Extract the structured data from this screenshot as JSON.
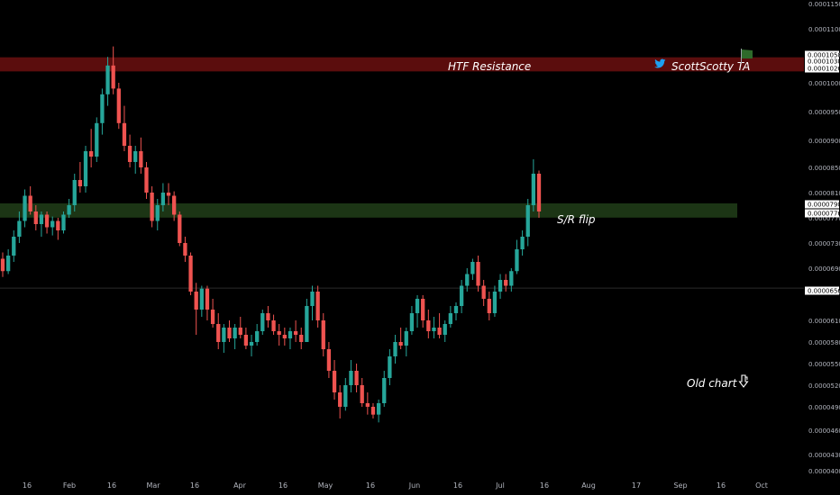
{
  "chart_data": {
    "type": "candlestick",
    "y_axis_ticks": [
      "0.0000400",
      "0.0000430",
      "0.0000460",
      "0.0000490",
      "0.0000520",
      "0.0000550",
      "0.0000580",
      "0.0000610",
      "0.0000650",
      "0.0000690",
      "0.0000730",
      "0.0000770",
      "0.0000810",
      "0.0000850",
      "0.0000900",
      "0.0000950",
      "0.0001000",
      "0.0001050",
      "0.0001100",
      "0.0001150"
    ],
    "x_axis_ticks": [
      "16",
      "Feb",
      "16",
      "Mar",
      "16",
      "Apr",
      "16",
      "May",
      "16",
      "Jun",
      "16",
      "Jul",
      "16",
      "Aug",
      "17",
      "Sep",
      "16",
      "Oct"
    ],
    "price_tags": [
      {
        "label": "0.0001058",
        "value": 0.0001058
      },
      {
        "label": "0.0001038",
        "value": 0.0001038
      },
      {
        "label": "0.0001026",
        "value": 0.0001026
      },
      {
        "label": "0.0000790",
        "value": 7.9e-05
      },
      {
        "label": "0.0000776",
        "value": 7.76e-05
      },
      {
        "label": "0.0000656",
        "value": 6.56e-05
      }
    ],
    "zones": [
      {
        "label": "HTF Resistance",
        "low": 0.0001026,
        "high": 0.0001038,
        "color": "#6b0f0f"
      },
      {
        "label": "S/R flip",
        "low": 7.76e-05,
        "high": 7.9e-05,
        "color": "#1f3b17"
      }
    ],
    "candles": [
      {
        "o": 7.05e-05,
        "h": 7.15e-05,
        "l": 6.75e-05,
        "c": 6.85e-05
      },
      {
        "o": 6.85e-05,
        "h": 7.2e-05,
        "l": 6.8e-05,
        "c": 7.1e-05
      },
      {
        "o": 7.1e-05,
        "h": 7.5e-05,
        "l": 7e-05,
        "c": 7.4e-05
      },
      {
        "o": 7.4e-05,
        "h": 7.8e-05,
        "l": 7.3e-05,
        "c": 7.65e-05
      },
      {
        "o": 7.65e-05,
        "h": 8.15e-05,
        "l": 7.55e-05,
        "c": 8.05e-05
      },
      {
        "o": 8.05e-05,
        "h": 8.2e-05,
        "l": 7.75e-05,
        "c": 7.8e-05
      },
      {
        "o": 7.8e-05,
        "h": 7.9e-05,
        "l": 7.5e-05,
        "c": 7.6e-05
      },
      {
        "o": 7.6e-05,
        "h": 7.8e-05,
        "l": 7.4e-05,
        "c": 7.75e-05
      },
      {
        "o": 7.75e-05,
        "h": 7.8e-05,
        "l": 7.45e-05,
        "c": 7.55e-05
      },
      {
        "o": 7.55e-05,
        "h": 7.72e-05,
        "l": 7.42e-05,
        "c": 7.65e-05
      },
      {
        "o": 7.65e-05,
        "h": 7.7e-05,
        "l": 7.35e-05,
        "c": 7.5e-05
      },
      {
        "o": 7.5e-05,
        "h": 7.8e-05,
        "l": 7.45e-05,
        "c": 7.75e-05
      },
      {
        "o": 7.75e-05,
        "h": 8e-05,
        "l": 7.7e-05,
        "c": 7.9e-05
      },
      {
        "o": 7.9e-05,
        "h": 8.4e-05,
        "l": 7.8e-05,
        "c": 8.3e-05
      },
      {
        "o": 8.3e-05,
        "h": 8.6e-05,
        "l": 8.1e-05,
        "c": 8.2e-05
      },
      {
        "o": 8.2e-05,
        "h": 8.9e-05,
        "l": 8.1e-05,
        "c": 8.8e-05
      },
      {
        "o": 8.8e-05,
        "h": 9.2e-05,
        "l": 8.5e-05,
        "c": 8.7e-05
      },
      {
        "o": 8.7e-05,
        "h": 9.4e-05,
        "l": 8.6e-05,
        "c": 9.3e-05
      },
      {
        "o": 9.3e-05,
        "h": 9.9e-05,
        "l": 9.1e-05,
        "c": 9.8e-05
      },
      {
        "o": 9.8e-05,
        "h": 0.0001045,
        "l": 9.6e-05,
        "c": 0.000103
      },
      {
        "o": 0.000103,
        "h": 0.0001065,
        "l": 9.8e-05,
        "c": 9.9e-05
      },
      {
        "o": 9.9e-05,
        "h": 0.0001,
        "l": 9.2e-05,
        "c": 9.3e-05
      },
      {
        "o": 9.3e-05,
        "h": 9.6e-05,
        "l": 8.8e-05,
        "c": 8.9e-05
      },
      {
        "o": 8.9e-05,
        "h": 9.1e-05,
        "l": 8.5e-05,
        "c": 8.6e-05
      },
      {
        "o": 8.6e-05,
        "h": 8.9e-05,
        "l": 8.4e-05,
        "c": 8.8e-05
      },
      {
        "o": 8.8e-05,
        "h": 9.05e-05,
        "l": 8.4e-05,
        "c": 8.5e-05
      },
      {
        "o": 8.5e-05,
        "h": 8.6e-05,
        "l": 8e-05,
        "c": 8.1e-05
      },
      {
        "o": 8.1e-05,
        "h": 8.2e-05,
        "l": 7.55e-05,
        "c": 7.65e-05
      },
      {
        "o": 7.65e-05,
        "h": 8e-05,
        "l": 7.5e-05,
        "c": 7.9e-05
      },
      {
        "o": 7.9e-05,
        "h": 8.25e-05,
        "l": 7.8e-05,
        "c": 8.1e-05
      },
      {
        "o": 8.1e-05,
        "h": 8.25e-05,
        "l": 7.9e-05,
        "c": 8.05e-05
      },
      {
        "o": 8.05e-05,
        "h": 8.12e-05,
        "l": 7.65e-05,
        "c": 7.75e-05
      },
      {
        "o": 7.75e-05,
        "h": 7.8e-05,
        "l": 7.25e-05,
        "c": 7.3e-05
      },
      {
        "o": 7.3e-05,
        "h": 7.4e-05,
        "l": 7e-05,
        "c": 7.1e-05
      },
      {
        "o": 7.1e-05,
        "h": 7.15e-05,
        "l": 6.45e-05,
        "c": 6.5e-05
      },
      {
        "o": 6.5e-05,
        "h": 6.65e-05,
        "l": 5.9e-05,
        "c": 6.25e-05
      },
      {
        "o": 6.25e-05,
        "h": 6.6e-05,
        "l": 6.15e-05,
        "c": 6.55e-05
      },
      {
        "o": 6.55e-05,
        "h": 6.6e-05,
        "l": 6.1e-05,
        "c": 6.25e-05
      },
      {
        "o": 6.25e-05,
        "h": 6.4e-05,
        "l": 6e-05,
        "c": 6.05e-05
      },
      {
        "o": 6.05e-05,
        "h": 6.2e-05,
        "l": 5.7e-05,
        "c": 5.8e-05
      },
      {
        "o": 5.8e-05,
        "h": 6.05e-05,
        "l": 5.65e-05,
        "c": 6e-05
      },
      {
        "o": 6e-05,
        "h": 6.1e-05,
        "l": 5.8e-05,
        "c": 5.85e-05
      },
      {
        "o": 5.85e-05,
        "h": 6.05e-05,
        "l": 5.7e-05,
        "c": 6e-05
      },
      {
        "o": 6e-05,
        "h": 6.15e-05,
        "l": 5.85e-05,
        "c": 5.9e-05
      },
      {
        "o": 5.9e-05,
        "h": 6e-05,
        "l": 5.7e-05,
        "c": 5.75e-05
      },
      {
        "o": 5.75e-05,
        "h": 5.9e-05,
        "l": 5.6e-05,
        "c": 5.8e-05
      },
      {
        "o": 5.8e-05,
        "h": 6.05e-05,
        "l": 5.75e-05,
        "c": 5.95e-05
      },
      {
        "o": 5.95e-05,
        "h": 6.25e-05,
        "l": 5.9e-05,
        "c": 6.2e-05
      },
      {
        "o": 6.2e-05,
        "h": 6.3e-05,
        "l": 6e-05,
        "c": 6.1e-05
      },
      {
        "o": 6.1e-05,
        "h": 6.18e-05,
        "l": 5.9e-05,
        "c": 5.95e-05
      },
      {
        "o": 5.95e-05,
        "h": 6.05e-05,
        "l": 5.75e-05,
        "c": 5.9e-05
      },
      {
        "o": 5.9e-05,
        "h": 6e-05,
        "l": 5.75e-05,
        "c": 5.85e-05
      },
      {
        "o": 5.85e-05,
        "h": 6e-05,
        "l": 5.7e-05,
        "c": 5.95e-05
      },
      {
        "o": 5.95e-05,
        "h": 6.1e-05,
        "l": 5.8e-05,
        "c": 5.9e-05
      },
      {
        "o": 5.9e-05,
        "h": 6e-05,
        "l": 5.7e-05,
        "c": 5.8e-05
      },
      {
        "o": 5.8e-05,
        "h": 6.4e-05,
        "l": 5.8e-05,
        "c": 6.3e-05
      },
      {
        "o": 6.3e-05,
        "h": 6.6e-05,
        "l": 6.1e-05,
        "c": 6.5e-05
      },
      {
        "o": 6.5e-05,
        "h": 6.6e-05,
        "l": 6e-05,
        "c": 6.1e-05
      },
      {
        "o": 6.1e-05,
        "h": 6.2e-05,
        "l": 5.6e-05,
        "c": 5.7e-05
      },
      {
        "o": 5.7e-05,
        "h": 5.8e-05,
        "l": 5.3e-05,
        "c": 5.4e-05
      },
      {
        "o": 5.4e-05,
        "h": 5.55e-05,
        "l": 5e-05,
        "c": 5.1e-05
      },
      {
        "o": 5.1e-05,
        "h": 5.2e-05,
        "l": 4.75e-05,
        "c": 4.9e-05
      },
      {
        "o": 4.9e-05,
        "h": 5.3e-05,
        "l": 4.85e-05,
        "c": 5.2e-05
      },
      {
        "o": 5.2e-05,
        "h": 5.55e-05,
        "l": 5.1e-05,
        "c": 5.4e-05
      },
      {
        "o": 5.4e-05,
        "h": 5.5e-05,
        "l": 5.1e-05,
        "c": 5.2e-05
      },
      {
        "o": 5.2e-05,
        "h": 5.3e-05,
        "l": 4.9e-05,
        "c": 4.95e-05
      },
      {
        "o": 4.95e-05,
        "h": 5.1e-05,
        "l": 4.8e-05,
        "c": 4.9e-05
      },
      {
        "o": 4.9e-05,
        "h": 4.95e-05,
        "l": 4.75e-05,
        "c": 4.8e-05
      },
      {
        "o": 4.8e-05,
        "h": 5e-05,
        "l": 4.7e-05,
        "c": 4.95e-05
      },
      {
        "o": 4.95e-05,
        "h": 5.4e-05,
        "l": 4.9e-05,
        "c": 5.3e-05
      },
      {
        "o": 5.3e-05,
        "h": 5.7e-05,
        "l": 5.2e-05,
        "c": 5.6e-05
      },
      {
        "o": 5.6e-05,
        "h": 5.9e-05,
        "l": 5.5e-05,
        "c": 5.8e-05
      },
      {
        "o": 5.8e-05,
        "h": 6e-05,
        "l": 5.7e-05,
        "c": 5.75e-05
      },
      {
        "o": 5.75e-05,
        "h": 6e-05,
        "l": 5.6e-05,
        "c": 5.95e-05
      },
      {
        "o": 5.95e-05,
        "h": 6.3e-05,
        "l": 5.9e-05,
        "c": 6.2e-05
      },
      {
        "o": 6.2e-05,
        "h": 6.45e-05,
        "l": 6e-05,
        "c": 6.4e-05
      },
      {
        "o": 6.4e-05,
        "h": 6.45e-05,
        "l": 6e-05,
        "c": 6.1e-05
      },
      {
        "o": 6.1e-05,
        "h": 6.25e-05,
        "l": 5.85e-05,
        "c": 5.95e-05
      },
      {
        "o": 5.95e-05,
        "h": 6.15e-05,
        "l": 5.85e-05,
        "c": 6e-05
      },
      {
        "o": 6e-05,
        "h": 6.2e-05,
        "l": 5.85e-05,
        "c": 5.9e-05
      },
      {
        "o": 5.9e-05,
        "h": 6.1e-05,
        "l": 5.8e-05,
        "c": 6.05e-05
      },
      {
        "o": 6.05e-05,
        "h": 6.3e-05,
        "l": 6e-05,
        "c": 6.2e-05
      },
      {
        "o": 6.2e-05,
        "h": 6.35e-05,
        "l": 6.1e-05,
        "c": 6.3e-05
      },
      {
        "o": 6.3e-05,
        "h": 6.7e-05,
        "l": 6.2e-05,
        "c": 6.6e-05
      },
      {
        "o": 6.6e-05,
        "h": 6.9e-05,
        "l": 6.5e-05,
        "c": 6.8e-05
      },
      {
        "o": 6.8e-05,
        "h": 7.05e-05,
        "l": 6.7e-05,
        "c": 7e-05
      },
      {
        "o": 7e-05,
        "h": 7.1e-05,
        "l": 6.5e-05,
        "c": 6.6e-05
      },
      {
        "o": 6.6e-05,
        "h": 6.7e-05,
        "l": 6.3e-05,
        "c": 6.4e-05
      },
      {
        "o": 6.4e-05,
        "h": 6.5e-05,
        "l": 6.1e-05,
        "c": 6.2e-05
      },
      {
        "o": 6.2e-05,
        "h": 6.6e-05,
        "l": 6.15e-05,
        "c": 6.5e-05
      },
      {
        "o": 6.5e-05,
        "h": 6.8e-05,
        "l": 6.4e-05,
        "c": 6.7e-05
      },
      {
        "o": 6.7e-05,
        "h": 6.8e-05,
        "l": 6.5e-05,
        "c": 6.6e-05
      },
      {
        "o": 6.6e-05,
        "h": 6.9e-05,
        "l": 6.5e-05,
        "c": 6.85e-05
      },
      {
        "o": 6.85e-05,
        "h": 7.35e-05,
        "l": 6.8e-05,
        "c": 7.2e-05
      },
      {
        "o": 7.2e-05,
        "h": 7.5e-05,
        "l": 7.1e-05,
        "c": 7.4e-05
      },
      {
        "o": 7.4e-05,
        "h": 8e-05,
        "l": 7.25e-05,
        "c": 7.9e-05
      },
      {
        "o": 7.9e-05,
        "h": 8.65e-05,
        "l": 7.8e-05,
        "c": 8.4e-05
      },
      {
        "o": 8.4e-05,
        "h": 8.45e-05,
        "l": 7.7e-05,
        "c": 7.8e-05
      }
    ]
  },
  "annotations": {
    "resistance_label": "HTF Resistance",
    "sr_label": "S/R flip",
    "old_chart_label": "Old chart",
    "author": "ScottScotty TA",
    "bird_icon": "twitter-bird-icon",
    "flag_icon": "flag-icon",
    "pointer_icon": "pointing-down-hand-icon"
  },
  "colors": {
    "up": "#26a69a",
    "down": "#ef5350",
    "background": "#000000",
    "axis_text": "#b2b5be",
    "twitter": "#1da1f2"
  }
}
